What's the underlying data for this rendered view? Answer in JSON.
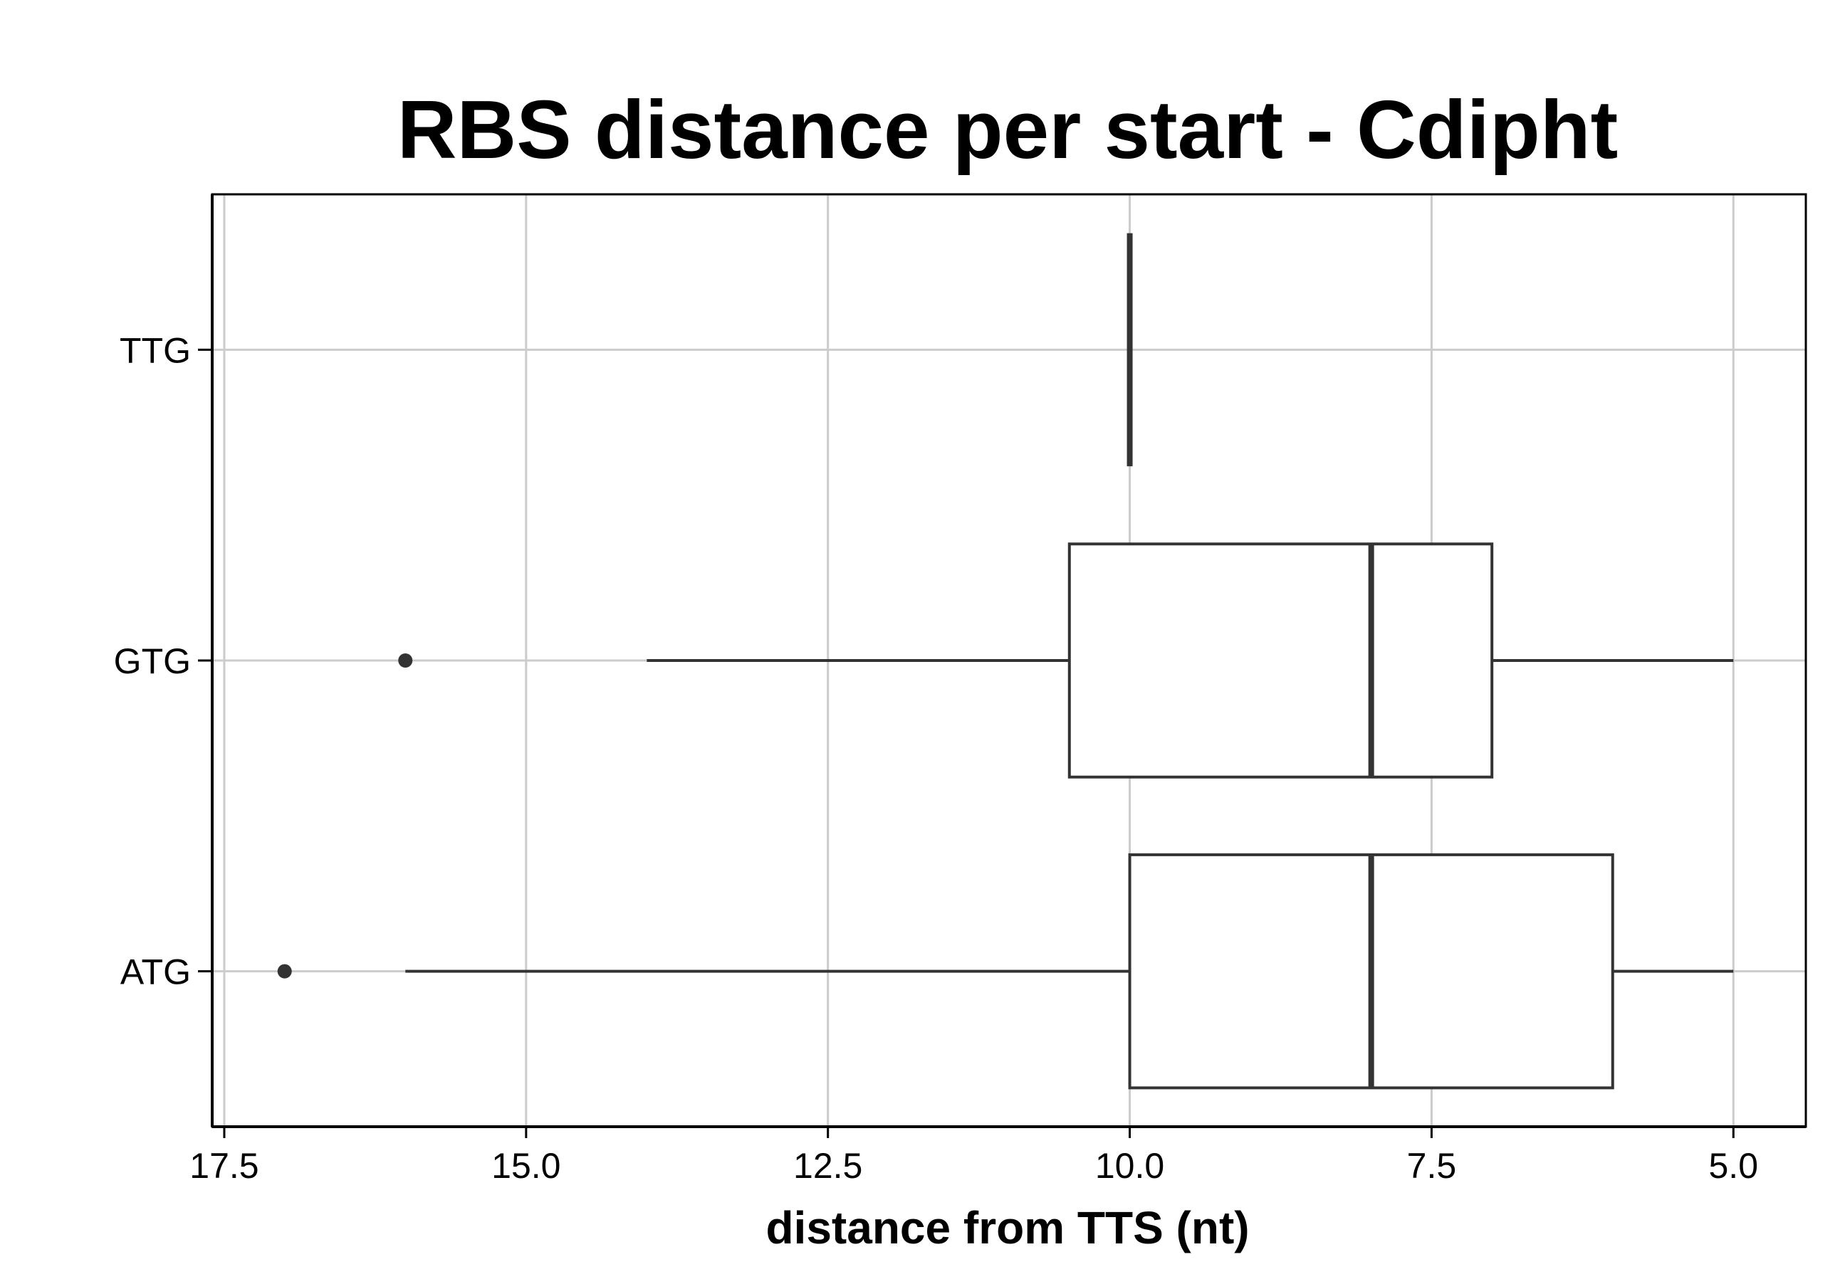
{
  "chart_data": {
    "type": "boxplot",
    "orientation": "horizontal",
    "title": "RBS distance per start - Cdipht",
    "xlabel": "distance from TTS (nt)",
    "ylabel": "",
    "x_axis_reversed": true,
    "xlim": [
      17.6,
      4.4
    ],
    "xticks": [
      17.5,
      15.0,
      12.5,
      10.0,
      7.5,
      5.0
    ],
    "xtick_labels": [
      "17.5",
      "15.0",
      "12.5",
      "10.0",
      "7.5",
      "5.0"
    ],
    "categories": [
      "TTG",
      "GTG",
      "ATG"
    ],
    "grid": true,
    "boxes": [
      {
        "category": "TTG",
        "whisker_low": 10,
        "q1": 10,
        "median": 10,
        "q3": 10,
        "whisker_high": 10,
        "outliers": []
      },
      {
        "category": "GTG",
        "whisker_low": 5,
        "q1": 7,
        "median": 8,
        "q3": 10.5,
        "whisker_high": 14,
        "outliers": [
          16
        ]
      },
      {
        "category": "ATG",
        "whisker_low": 5,
        "q1": 6,
        "median": 8,
        "q3": 10,
        "whisker_high": 16,
        "outliers": [
          17
        ]
      }
    ],
    "colors": {
      "box_stroke": "#333333",
      "grid": "#cccccc",
      "frame": "#000000",
      "outlier": "#333333"
    }
  }
}
